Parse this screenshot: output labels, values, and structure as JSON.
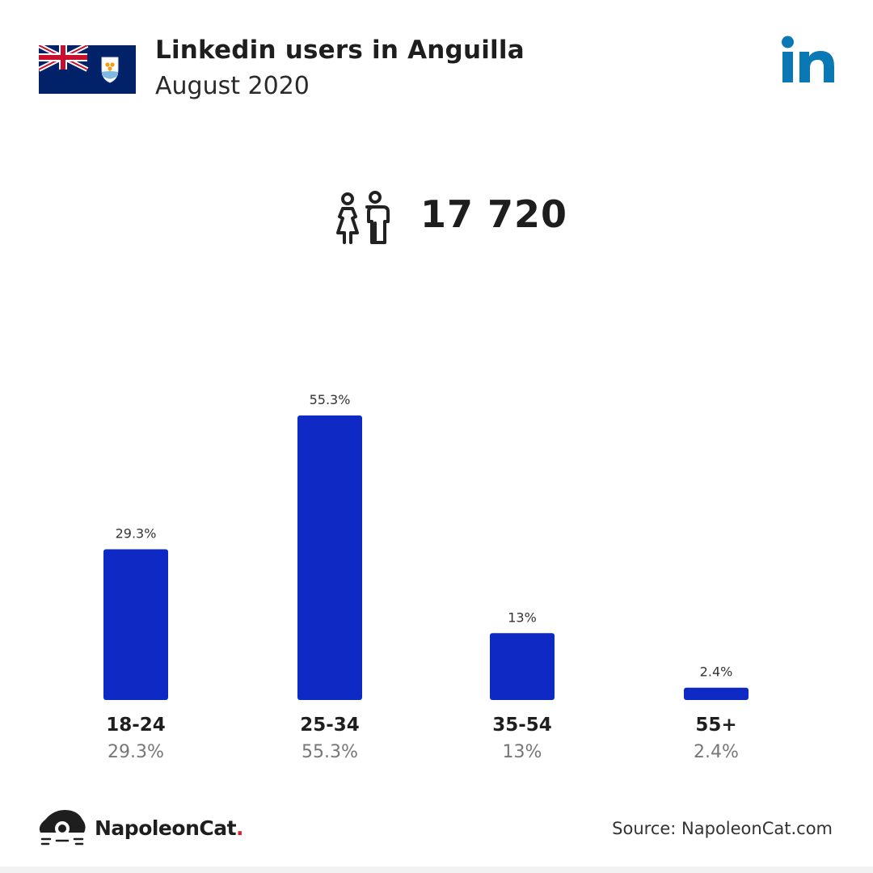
{
  "header": {
    "title": "Linkedin users in Anguilla",
    "subtitle": "August 2020",
    "logo_icon": "linkedin-in-icon",
    "flag_icon": "anguilla-flag-icon"
  },
  "summary": {
    "icon": "users-icon",
    "total": "17 720"
  },
  "colors": {
    "bar": "#0f2ac4",
    "linkedin": "#0a78b5",
    "brand_dot": "#e31e24"
  },
  "chart_data": {
    "type": "bar",
    "title": "",
    "xlabel": "",
    "ylabel": "",
    "categories": [
      "18-24",
      "25-34",
      "35-54",
      "55+"
    ],
    "values": [
      29.3,
      55.3,
      13,
      2.4
    ],
    "value_labels": [
      "29.3%",
      "55.3%",
      "13%",
      "2.4%"
    ],
    "ylim": [
      0,
      55.3
    ],
    "grid": false
  },
  "footer": {
    "brand_name": "NapoleonCat",
    "brand_dot": ".",
    "source": "Source: NapoleonCat.com"
  }
}
